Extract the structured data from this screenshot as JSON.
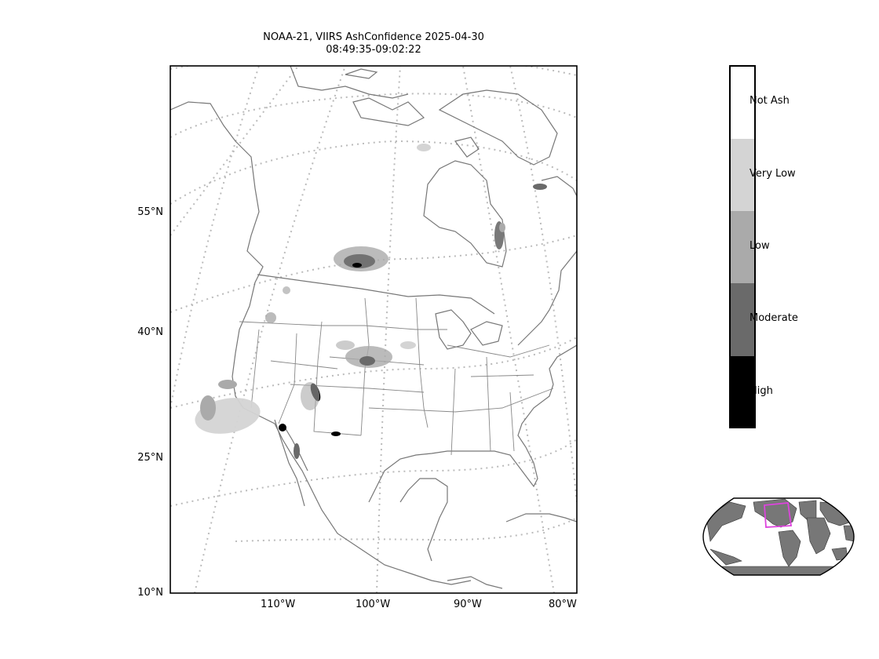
{
  "title": {
    "line1": "NOAA-21, VIIRS AshConfidence 2025-04-30",
    "line2": "08:49:35-09:02:22"
  },
  "axes": {
    "lat_ticks": [
      "55°N",
      "40°N",
      "25°N",
      "10°N"
    ],
    "lon_ticks": [
      "110°W",
      "100°W",
      "90°W",
      "80°W"
    ]
  },
  "colorbar": {
    "categories": [
      {
        "label": "Not Ash",
        "color": "#ffffff"
      },
      {
        "label": "Very Low",
        "color": "#d4d4d4"
      },
      {
        "label": "Low",
        "color": "#aaaaaa"
      },
      {
        "label": "Moderate",
        "color": "#6a6a6a"
      },
      {
        "label": "High",
        "color": "#000000"
      }
    ]
  },
  "colors": {
    "coastline": "#777777",
    "graticule": "#bbbbbb",
    "inset_land": "#777777",
    "inset_box": "#dd44dd"
  }
}
